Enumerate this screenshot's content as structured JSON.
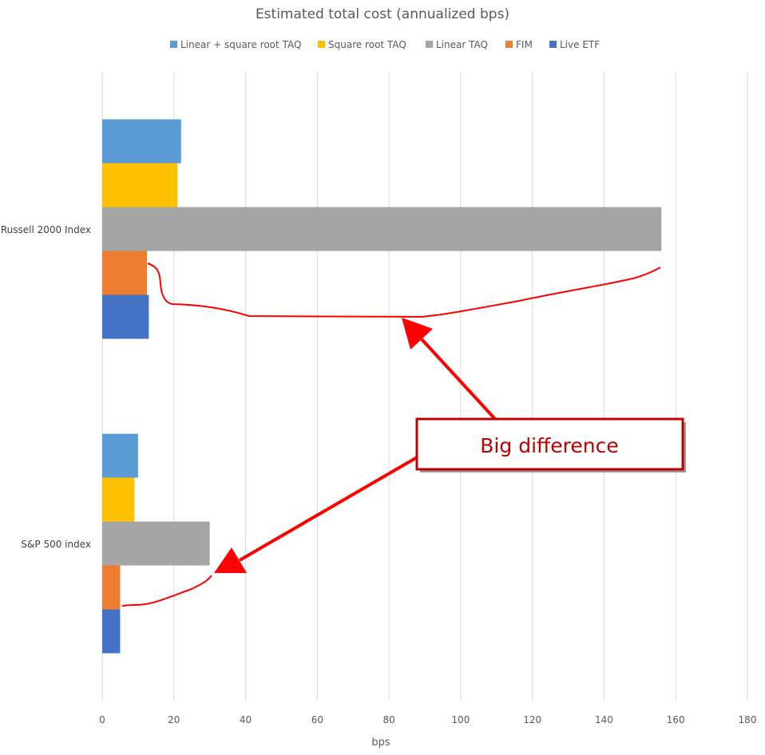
{
  "chart_data": {
    "type": "bar",
    "orientation": "horizontal",
    "title": "Estimated total cost (annualized bps)",
    "xlabel": "bps",
    "ylabel": "",
    "xlim": [
      0,
      180
    ],
    "xticks": [
      0,
      20,
      40,
      60,
      80,
      100,
      120,
      140,
      160,
      180
    ],
    "grid": true,
    "legend_position": "top",
    "categories": [
      "Russell 2000 Index",
      "S&P 500 index"
    ],
    "series": [
      {
        "name": "Linear + square root TAQ",
        "color": "#5b9bd5",
        "values": [
          22,
          10
        ]
      },
      {
        "name": "Square root TAQ",
        "color": "#ffc000",
        "values": [
          21,
          9
        ]
      },
      {
        "name": "Linear TAQ",
        "color": "#a5a5a5",
        "values": [
          156,
          30
        ]
      },
      {
        "name": "FIM",
        "color": "#ed7d31",
        "values": [
          12.5,
          5
        ]
      },
      {
        "name": "Live ETF",
        "color": "#4472c4",
        "values": [
          13,
          5
        ]
      }
    ],
    "annotation": {
      "text": "Big difference",
      "color": "#ff0000",
      "box_border_color": "#c00000"
    }
  }
}
